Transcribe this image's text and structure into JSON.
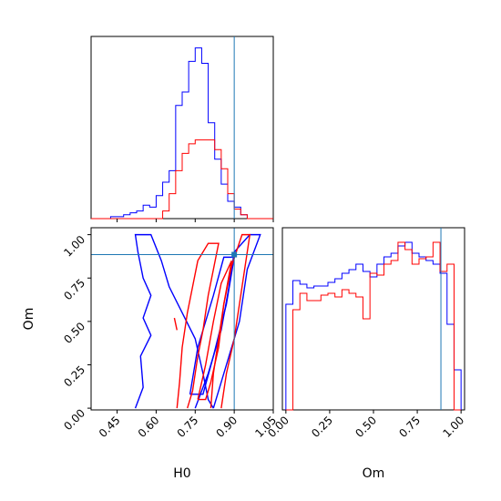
{
  "colors": {
    "sample_a": "#0000ff",
    "sample_b": "#ff0000",
    "truth": "#1f77b4"
  },
  "truth": {
    "H0": 0.9,
    "Om": 0.885
  },
  "chart_data": [
    {
      "panel": "H0 histogram",
      "type": "histogram",
      "xlim": [
        0.35,
        1.05
      ],
      "bin_edges": [
        0.35,
        0.375,
        0.4,
        0.425,
        0.45,
        0.475,
        0.5,
        0.525,
        0.55,
        0.575,
        0.6,
        0.625,
        0.65,
        0.675,
        0.7,
        0.725,
        0.75,
        0.775,
        0.8,
        0.825,
        0.85,
        0.875,
        0.9,
        0.925,
        0.95,
        0.975,
        1.0,
        1.025,
        1.05
      ],
      "series": [
        {
          "color": "blue",
          "values": [
            0,
            0,
            0,
            0.01,
            0.01,
            0.02,
            0.03,
            0.04,
            0.07,
            0.06,
            0.12,
            0.19,
            0.25,
            0.59,
            0.66,
            0.82,
            0.89,
            0.81,
            0.5,
            0.31,
            0.18,
            0.09,
            0.06,
            0.02,
            0,
            0,
            0,
            0
          ]
        },
        {
          "color": "red",
          "values": [
            0,
            0,
            0,
            0,
            0,
            0,
            0,
            0,
            0,
            0,
            0,
            0.04,
            0.13,
            0.25,
            0.34,
            0.39,
            0.41,
            0.41,
            0.41,
            0.36,
            0.26,
            0.13,
            0.05,
            0.02,
            0,
            0,
            0,
            0
          ]
        }
      ]
    },
    {
      "panel": "H0 vs Om contours",
      "type": "contour",
      "xlabel": "H0",
      "ylabel": "Om",
      "xlim": [
        0.35,
        1.05
      ],
      "ylim": [
        -0.01,
        1.04
      ],
      "xticks": [
        "0.45",
        "0.60",
        "0.75",
        "0.90",
        "1.05"
      ],
      "yticks": [
        "0.00",
        "0.25",
        "0.50",
        "0.75",
        "1.00"
      ],
      "series": [
        {
          "color": "blue",
          "contours": [
            [
              [
                0.52,
                0.0
              ],
              [
                0.55,
                0.12
              ],
              [
                0.54,
                0.3
              ],
              [
                0.58,
                0.42
              ],
              [
                0.55,
                0.52
              ],
              [
                0.58,
                0.65
              ],
              [
                0.55,
                0.75
              ],
              [
                0.53,
                0.9
              ],
              [
                0.52,
                1.0
              ],
              [
                0.58,
                1.0
              ],
              [
                0.62,
                0.85
              ],
              [
                0.65,
                0.7
              ],
              [
                0.7,
                0.55
              ],
              [
                0.75,
                0.4
              ],
              [
                0.78,
                0.2
              ],
              [
                0.8,
                0.05
              ],
              [
                0.82,
                0.0
              ]
            ],
            [
              [
                0.75,
                0.0
              ],
              [
                0.8,
                0.2
              ],
              [
                0.85,
                0.45
              ],
              [
                0.88,
                0.7
              ],
              [
                0.9,
                0.9
              ],
              [
                0.96,
                1.0
              ],
              [
                1.0,
                1.0
              ],
              [
                0.95,
                0.8
              ],
              [
                0.92,
                0.5
              ],
              [
                0.88,
                0.3
              ],
              [
                0.84,
                0.1
              ],
              [
                0.82,
                0.0
              ]
            ],
            [
              [
                0.73,
                0.08
              ],
              [
                0.76,
                0.35
              ],
              [
                0.82,
                0.65
              ],
              [
                0.86,
                0.87
              ],
              [
                0.9,
                0.87
              ],
              [
                0.87,
                0.6
              ],
              [
                0.82,
                0.3
              ],
              [
                0.78,
                0.08
              ],
              [
                0.73,
                0.08
              ]
            ]
          ]
        },
        {
          "color": "red",
          "contours": [
            [
              [
                0.68,
                0.0
              ],
              [
                0.69,
                0.15
              ],
              [
                0.7,
                0.35
              ],
              [
                0.72,
                0.55
              ],
              [
                0.74,
                0.7
              ],
              [
                0.76,
                0.85
              ],
              [
                0.8,
                0.95
              ],
              [
                0.84,
                0.95
              ],
              [
                0.82,
                0.8
              ],
              [
                0.8,
                0.65
              ],
              [
                0.78,
                0.45
              ],
              [
                0.76,
                0.3
              ],
              [
                0.74,
                0.1
              ],
              [
                0.72,
                0.0
              ]
            ],
            [
              [
                0.81,
                0.0
              ],
              [
                0.82,
                0.2
              ],
              [
                0.84,
                0.4
              ],
              [
                0.86,
                0.6
              ],
              [
                0.89,
                0.82
              ],
              [
                0.93,
                1.0
              ],
              [
                0.96,
                1.0
              ],
              [
                0.94,
                0.8
              ],
              [
                0.92,
                0.6
              ],
              [
                0.9,
                0.4
              ],
              [
                0.87,
                0.2
              ],
              [
                0.85,
                0.0
              ]
            ],
            [
              [
                0.76,
                0.05
              ],
              [
                0.79,
                0.25
              ],
              [
                0.82,
                0.5
              ],
              [
                0.85,
                0.72
              ],
              [
                0.89,
                0.85
              ],
              [
                0.86,
                0.6
              ],
              [
                0.84,
                0.35
              ],
              [
                0.81,
                0.15
              ],
              [
                0.79,
                0.05
              ],
              [
                0.76,
                0.05
              ]
            ],
            [
              [
                0.68,
                0.45
              ],
              [
                0.67,
                0.52
              ]
            ]
          ]
        }
      ]
    },
    {
      "panel": "Om histogram",
      "type": "histogram",
      "xlabel": "Om",
      "xlim": [
        -0.02,
        1.02
      ],
      "xticks": [
        "0.00",
        "0.25",
        "0.50",
        "0.75",
        "1.00"
      ],
      "bin_edges": [
        0.0,
        0.04,
        0.08,
        0.12,
        0.16,
        0.2,
        0.24,
        0.28,
        0.32,
        0.36,
        0.4,
        0.44,
        0.48,
        0.52,
        0.56,
        0.6,
        0.64,
        0.68,
        0.72,
        0.76,
        0.8,
        0.84,
        0.88,
        0.92,
        0.96,
        1.0
      ],
      "series": [
        {
          "color": "blue",
          "values": [
            0.58,
            0.71,
            0.69,
            0.67,
            0.68,
            0.68,
            0.7,
            0.72,
            0.75,
            0.77,
            0.8,
            0.76,
            0.73,
            0.8,
            0.84,
            0.86,
            0.9,
            0.92,
            0.86,
            0.84,
            0.82,
            0.8,
            0.75,
            0.47,
            0.22
          ]
        },
        {
          "color": "red",
          "values": [
            0.0,
            0.55,
            0.64,
            0.6,
            0.6,
            0.63,
            0.64,
            0.62,
            0.66,
            0.64,
            0.62,
            0.5,
            0.75,
            0.74,
            0.8,
            0.82,
            0.92,
            0.88,
            0.8,
            0.83,
            0.84,
            0.92,
            0.76,
            0.8,
            0.0
          ]
        }
      ]
    }
  ]
}
